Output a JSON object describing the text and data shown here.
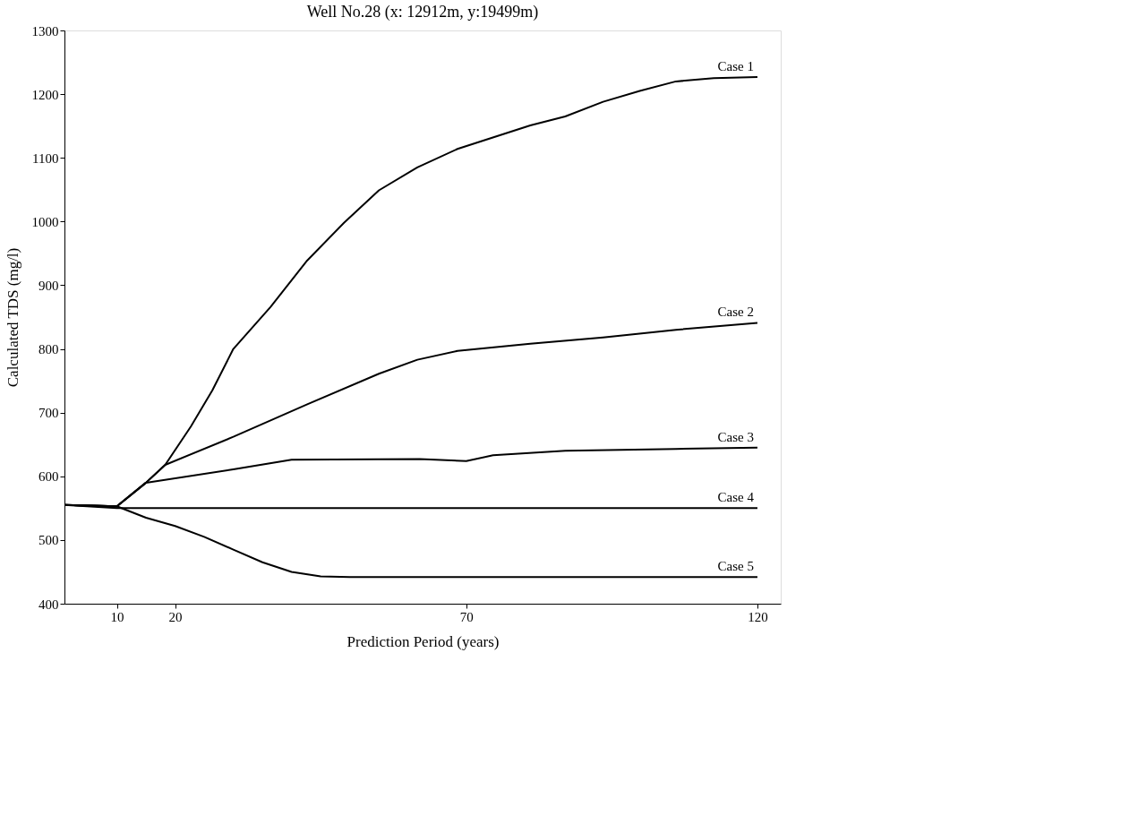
{
  "chart_data": {
    "type": "line",
    "title": "Well No.28 (x: 12912m, y:19499m)",
    "xlabel": "Prediction Period (years)",
    "ylabel": "Calculated TDS (mg/l)",
    "xlim": [
      1,
      124
    ],
    "xticks": [
      10,
      20,
      70,
      120
    ],
    "ylim": [
      400,
      1300
    ],
    "yticks": [
      400,
      500,
      600,
      700,
      800,
      900,
      1000,
      1100,
      1200,
      1300
    ],
    "grid": false,
    "legend": false,
    "marker": "none",
    "line_style": "solid",
    "series": [
      {
        "name": "Case 1",
        "color": "#000000",
        "x": [
          1,
          10,
          15,
          18.3,
          22.7,
          26.4,
          30,
          36.4,
          42.7,
          49,
          55,
          61.6,
          68.5,
          81,
          87,
          93.5,
          99.8,
          106,
          112.5,
          120
        ],
        "values": [
          555,
          553,
          590,
          618,
          678,
          735,
          800,
          866,
          939,
          998,
          1049,
          1085,
          1114,
          1151,
          1165,
          1188,
          1205,
          1220,
          1225,
          1227
        ]
      },
      {
        "name": "Case 2",
        "color": "#000000",
        "x": [
          1,
          10,
          15,
          18.3,
          30,
          42.7,
          55,
          61.6,
          68.5,
          81,
          93.5,
          106,
          120
        ],
        "values": [
          555,
          553,
          590,
          618,
          662,
          713,
          761,
          783,
          797,
          808,
          818,
          830,
          841
        ]
      },
      {
        "name": "Case 3",
        "color": "#000000",
        "x": [
          1,
          10,
          15,
          30,
          40,
          62,
          70,
          74.6,
          87,
          106,
          120
        ],
        "values": [
          555,
          553,
          590,
          611,
          626,
          627,
          624,
          633,
          640,
          643,
          645
        ]
      },
      {
        "name": "Case 4",
        "color": "#000000",
        "x": [
          1,
          10,
          120
        ],
        "values": [
          555,
          550,
          550
        ]
      },
      {
        "name": "Case 5",
        "color": "#000000",
        "x": [
          1,
          10,
          15,
          20,
          25,
          30,
          35,
          40,
          45,
          50,
          120
        ],
        "values": [
          555,
          553,
          535,
          522,
          505,
          485,
          465,
          450,
          443,
          442,
          442
        ]
      }
    ]
  }
}
